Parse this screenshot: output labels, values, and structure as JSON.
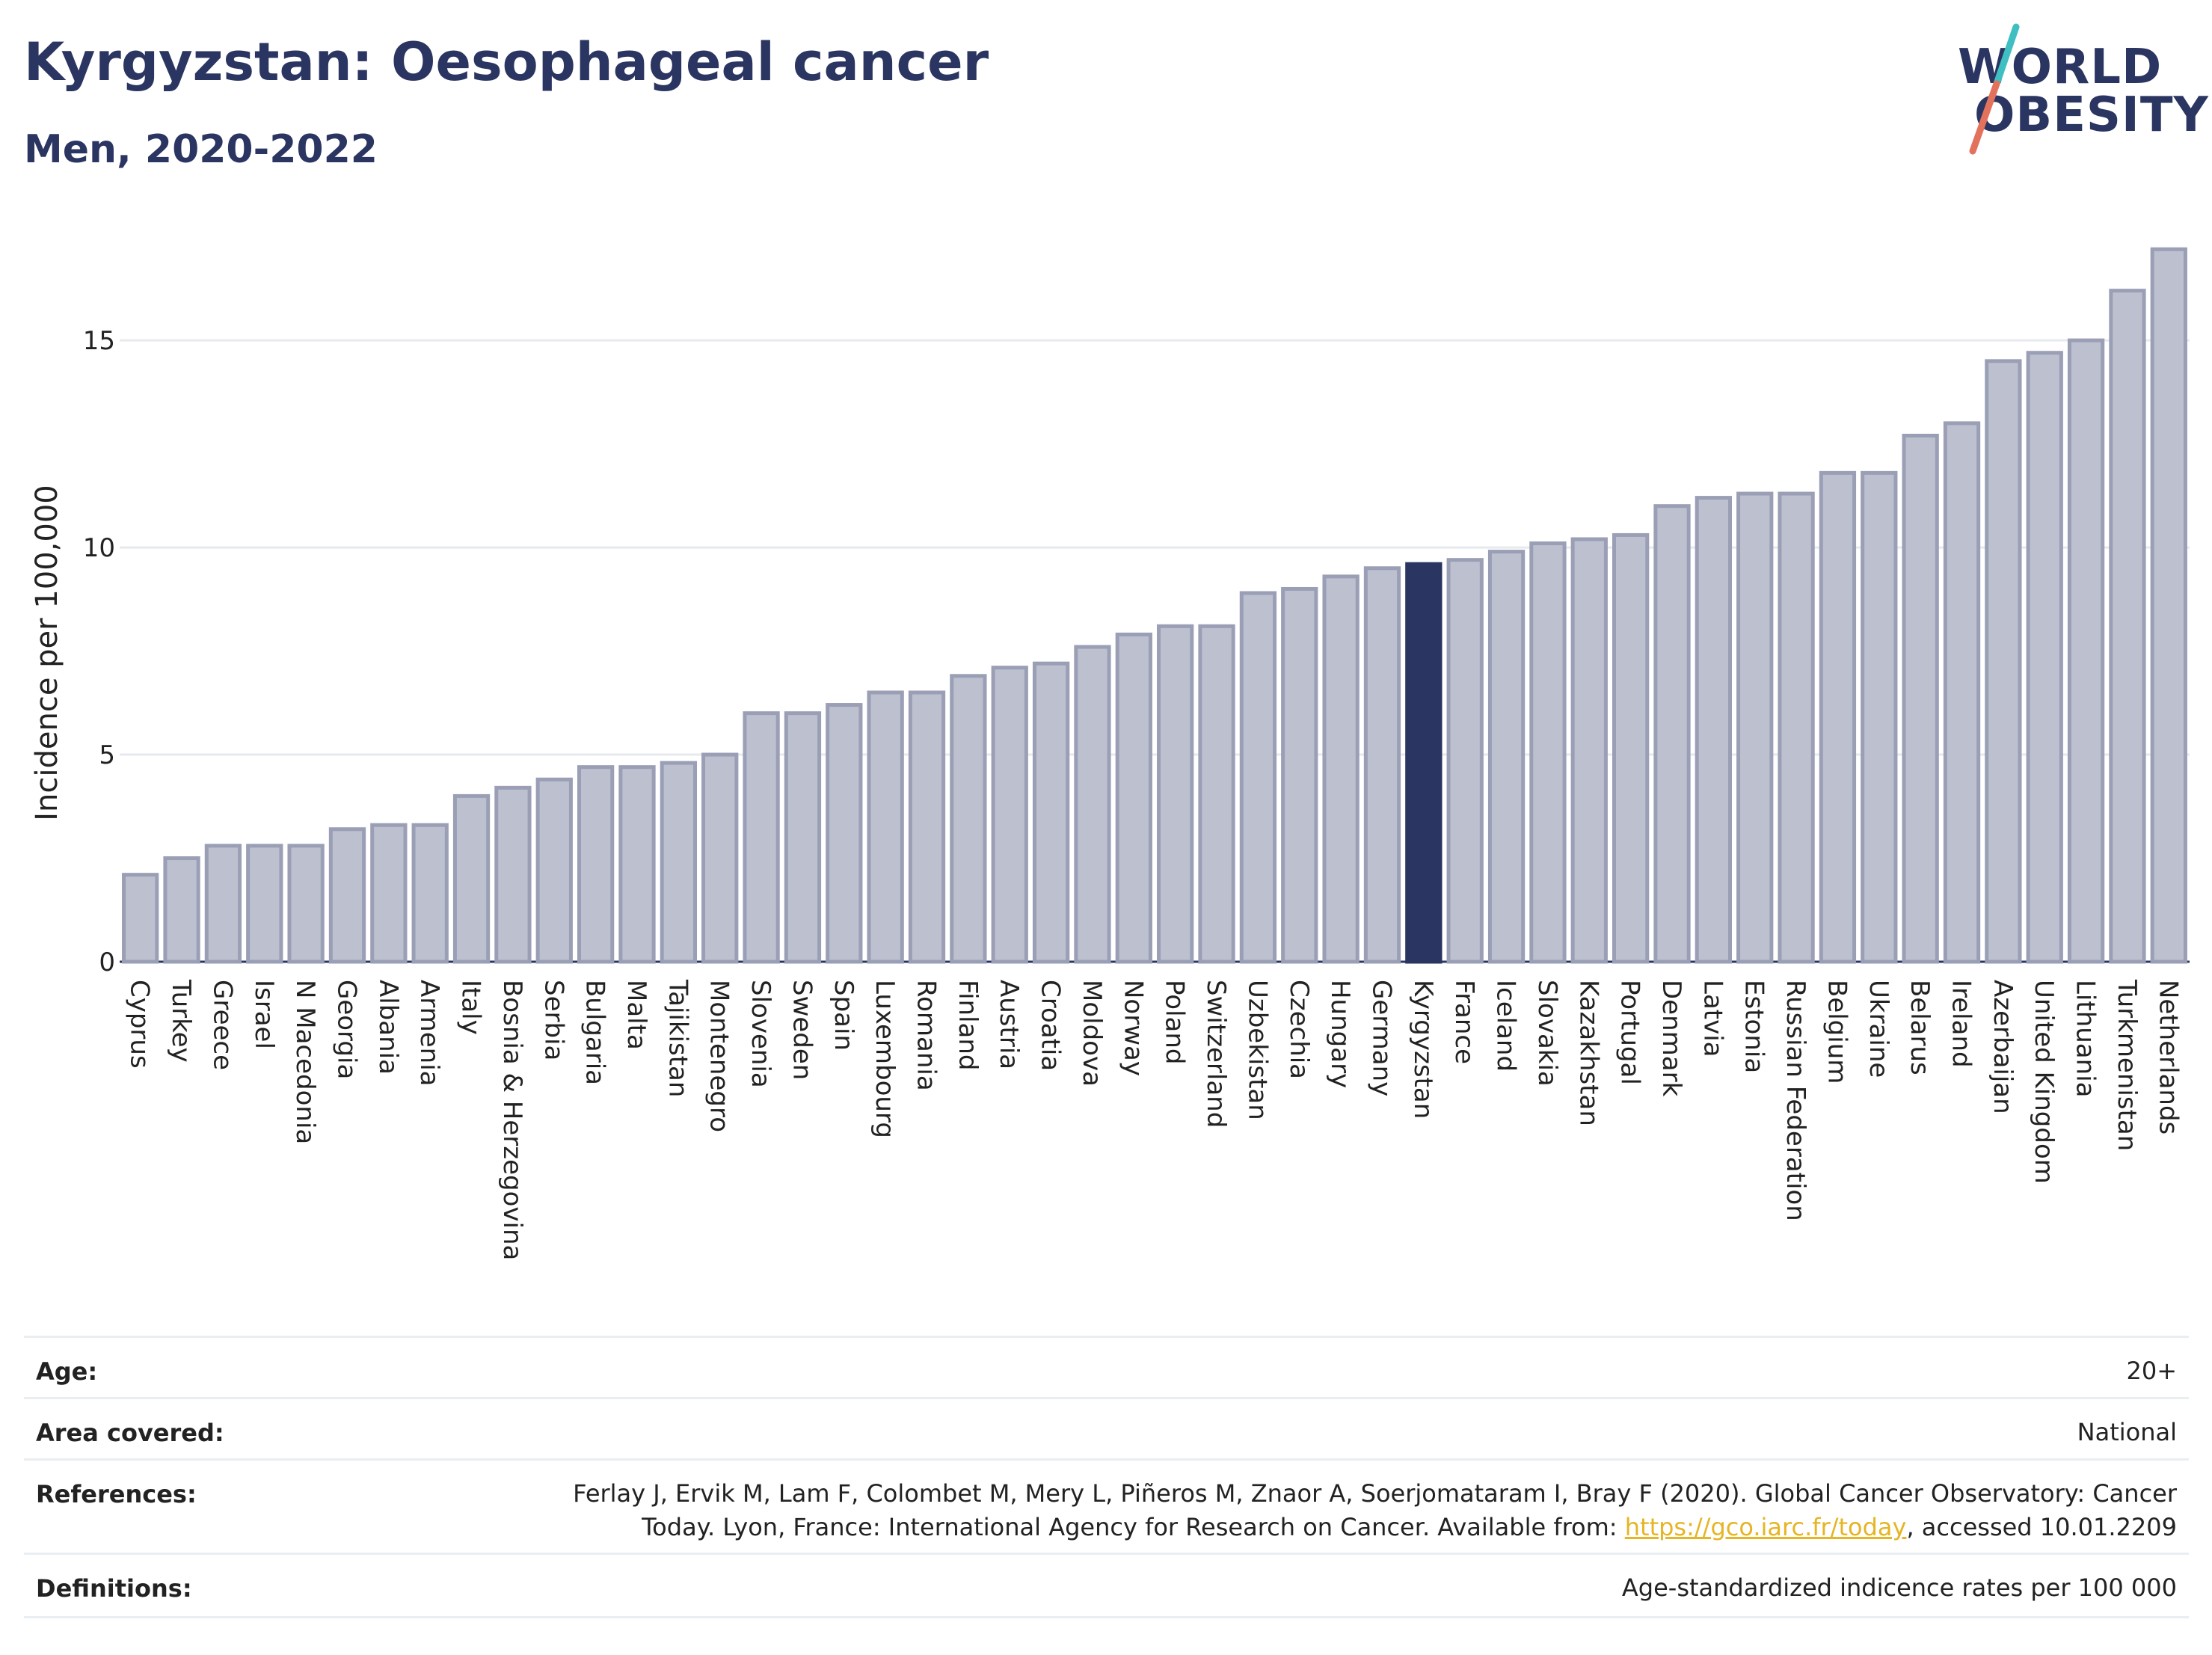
{
  "header": {
    "title": "Kyrgyzstan: Oesophageal cancer",
    "subtitle": "Men, 2020-2022"
  },
  "logo": {
    "line1": "WORLD",
    "line2": "OBESITY"
  },
  "colors": {
    "bar": "#bdc0cf",
    "bar_stroke": "#9a9fb6",
    "highlight": "#2b3561",
    "grid": "#e6e9ee"
  },
  "chart_data": {
    "type": "bar",
    "ylabel": "Incidence per 100,000",
    "ylim": [
      0,
      17.8
    ],
    "yticks": [
      0,
      5,
      10,
      15
    ],
    "highlight": "Kyrgyzstan",
    "categories": [
      "Cyprus",
      "Turkey",
      "Greece",
      "Israel",
      "N Macedonia",
      "Georgia",
      "Albania",
      "Armenia",
      "Italy",
      "Bosnia & Herzegovina",
      "Serbia",
      "Bulgaria",
      "Malta",
      "Tajikistan",
      "Montenegro",
      "Slovenia",
      "Sweden",
      "Spain",
      "Luxembourg",
      "Romania",
      "Finland",
      "Austria",
      "Croatia",
      "Moldova",
      "Norway",
      "Poland",
      "Switzerland",
      "Uzbekistan",
      "Czechia",
      "Hungary",
      "Germany",
      "Kyrgyzstan",
      "France",
      "Iceland",
      "Slovakia",
      "Kazakhstan",
      "Portugal",
      "Denmark",
      "Latvia",
      "Estonia",
      "Russian Federation",
      "Belgium",
      "Ukraine",
      "Belarus",
      "Ireland",
      "Azerbaijan",
      "United Kingdom",
      "Lithuania",
      "Turkmenistan",
      "Netherlands"
    ],
    "values": [
      2.1,
      2.5,
      2.8,
      2.8,
      2.8,
      3.2,
      3.3,
      3.3,
      4.0,
      4.2,
      4.4,
      4.7,
      4.7,
      4.8,
      5.0,
      6.0,
      6.0,
      6.2,
      6.5,
      6.5,
      6.9,
      7.1,
      7.2,
      7.6,
      7.9,
      8.1,
      8.1,
      8.9,
      9.0,
      9.3,
      9.5,
      9.6,
      9.7,
      9.9,
      10.1,
      10.2,
      10.3,
      11.0,
      11.2,
      11.3,
      11.3,
      11.8,
      11.8,
      12.7,
      13.0,
      14.5,
      14.7,
      15.0,
      16.2,
      17.2
    ]
  },
  "meta": {
    "age_label": "Age:",
    "age_value": "20+",
    "area_label": "Area covered:",
    "area_value": "National",
    "ref_label": "References:",
    "ref_line1": "Ferlay J, Ervik M, Lam F, Colombet M, Mery L, Piñeros M, Znaor A, Soerjomataram I, Bray F (2020). Global Cancer Observatory: Cancer",
    "ref_line2_pre": "Today. Lyon, France: International Agency for Research on Cancer. Available from: ",
    "ref_link": "https://gco.iarc.fr/today",
    "ref_line2_post": ", accessed 10.01.2209",
    "def_label": "Definitions:",
    "def_value": "Age-standardized indicence rates per 100 000"
  }
}
